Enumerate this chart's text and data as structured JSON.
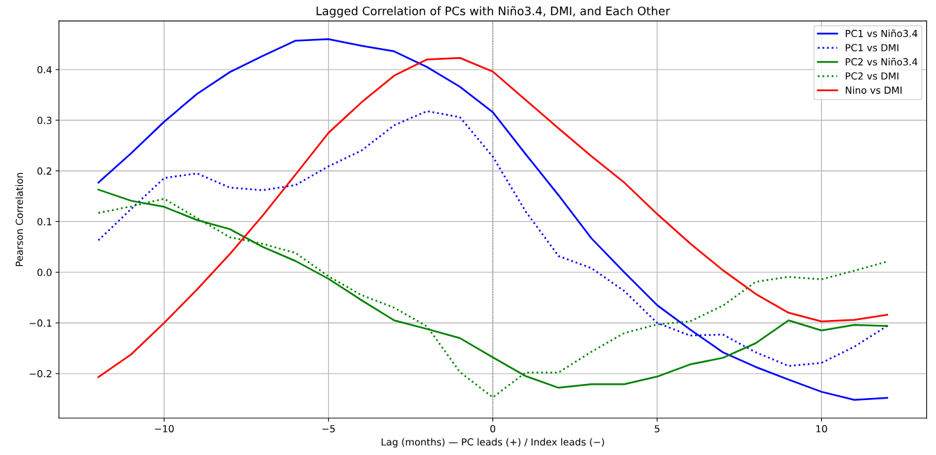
{
  "chart_data": {
    "type": "line",
    "title": "Lagged Correlation of PCs with Niño3.4, DMI, and Each Other",
    "xlabel": "Lag (months) — PC leads (+) / Index leads (−)",
    "ylabel": "Pearson Correlation",
    "x": [
      -12,
      -11,
      -10,
      -9,
      -8,
      -7,
      -6,
      -5,
      -4,
      -3,
      -2,
      -1,
      0,
      1,
      2,
      3,
      4,
      5,
      6,
      7,
      8,
      9,
      10,
      11,
      12
    ],
    "series": [
      {
        "name": "PC1 vs Niño3.4",
        "color": "#0000ff",
        "line_style": "solid",
        "values": [
          0.177,
          0.235,
          0.297,
          0.352,
          0.395,
          0.427,
          0.457,
          0.46,
          0.447,
          0.436,
          0.405,
          0.366,
          0.316,
          0.233,
          0.152,
          0.067,
          0.0,
          -0.065,
          -0.113,
          -0.158,
          -0.187,
          -0.212,
          -0.236,
          -0.252,
          -0.248
        ]
      },
      {
        "name": "PC1 vs DMI",
        "color": "#0000ff",
        "line_style": "dotted",
        "values": [
          0.063,
          0.125,
          0.186,
          0.195,
          0.167,
          0.162,
          0.172,
          0.209,
          0.24,
          0.29,
          0.318,
          0.306,
          0.228,
          0.12,
          0.032,
          0.008,
          -0.037,
          -0.1,
          -0.125,
          -0.123,
          -0.158,
          -0.185,
          -0.179,
          -0.147,
          -0.106
        ]
      },
      {
        "name": "PC2 vs Niño3.4",
        "color": "#008000",
        "line_style": "solid",
        "values": [
          0.163,
          0.141,
          0.129,
          0.103,
          0.085,
          0.05,
          0.022,
          -0.013,
          -0.055,
          -0.095,
          -0.112,
          -0.13,
          -0.168,
          -0.205,
          -0.228,
          -0.221,
          -0.221,
          -0.206,
          -0.182,
          -0.169,
          -0.14,
          -0.095,
          -0.115,
          -0.104,
          -0.106
        ]
      },
      {
        "name": "PC2 vs DMI",
        "color": "#008000",
        "line_style": "dotted",
        "values": [
          0.117,
          0.13,
          0.145,
          0.107,
          0.069,
          0.056,
          0.038,
          -0.008,
          -0.045,
          -0.07,
          -0.107,
          -0.197,
          -0.247,
          -0.198,
          -0.198,
          -0.157,
          -0.12,
          -0.103,
          -0.097,
          -0.066,
          -0.019,
          -0.009,
          -0.014,
          0.003,
          0.021
        ]
      },
      {
        "name": "Nino vs DMI",
        "color": "#ff0000",
        "line_style": "solid",
        "values": [
          -0.207,
          -0.162,
          -0.1,
          -0.034,
          0.036,
          0.112,
          0.193,
          0.275,
          0.335,
          0.388,
          0.42,
          0.423,
          0.396,
          0.34,
          0.284,
          0.229,
          0.177,
          0.115,
          0.057,
          0.004,
          -0.043,
          -0.08,
          -0.097,
          -0.094,
          -0.084
        ]
      }
    ],
    "xlim": [
      -13.2,
      13.2
    ],
    "xticks": [
      {
        "value": -10,
        "label": "−10"
      },
      {
        "value": -5,
        "label": "−5"
      },
      0,
      5,
      10
    ],
    "ylim": [
      -0.288,
      0.496
    ],
    "yticks": [
      {
        "value": -0.2,
        "label": "−0.2"
      },
      {
        "value": -0.1,
        "label": "−0.1"
      },
      {
        "value": 0.0,
        "label": "0.0"
      },
      {
        "value": 0.1,
        "label": "0.1"
      },
      {
        "value": 0.2,
        "label": "0.2"
      },
      {
        "value": 0.3,
        "label": "0.3"
      },
      {
        "value": 0.4,
        "label": "0.4"
      }
    ],
    "ref_lines": [
      {
        "axis": "x",
        "value": 0,
        "color": "#808080",
        "line_style": "dotted"
      }
    ],
    "grid": true,
    "legend": "top right",
    "marker": "none"
  }
}
